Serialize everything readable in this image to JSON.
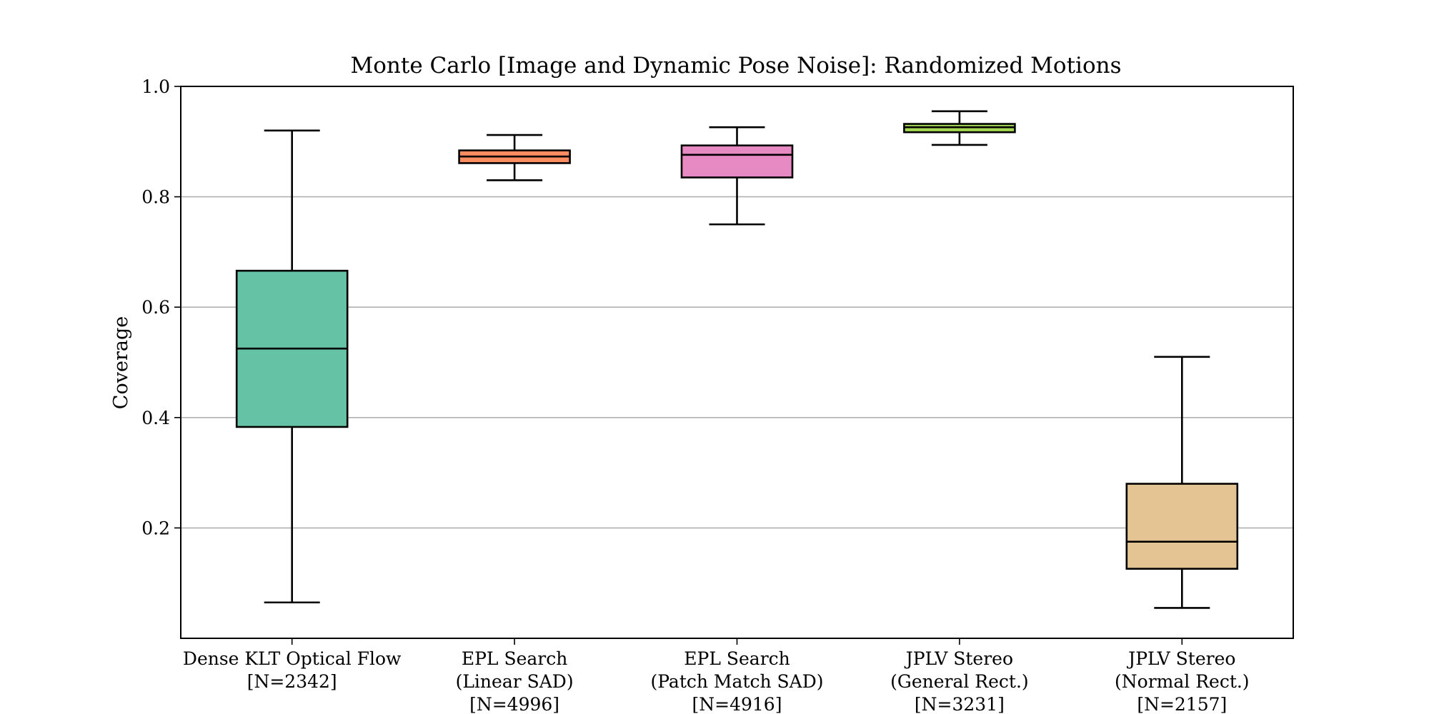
{
  "chart_data": {
    "type": "box",
    "title": "Monte Carlo [Image and Dynamic Pose Noise]: Randomized Motions",
    "xlabel": "",
    "ylabel": "Coverage",
    "ylim": [
      0.0,
      1.0
    ],
    "yticks": [
      "0.2",
      "0.4",
      "0.6",
      "0.8",
      "1.0"
    ],
    "grid": "horizontal",
    "categories": [
      {
        "lines": [
          "Dense KLT Optical Flow",
          "[N=2342]"
        ]
      },
      {
        "lines": [
          "EPL Search",
          "(Linear SAD)",
          "[N=4996]"
        ]
      },
      {
        "lines": [
          "EPL Search",
          "(Patch Match SAD)",
          "[N=4916]"
        ]
      },
      {
        "lines": [
          "JPLV Stereo",
          "(General Rect.)",
          "[N=3231]"
        ]
      },
      {
        "lines": [
          "JPLV Stereo",
          "(Normal Rect.)",
          "[N=2157]"
        ]
      }
    ],
    "boxes": [
      {
        "whislo": 0.065,
        "q1": 0.383,
        "median": 0.525,
        "q3": 0.666,
        "whishi": 0.92,
        "color": "#66c2a5"
      },
      {
        "whislo": 0.83,
        "q1": 0.861,
        "median": 0.873,
        "q3": 0.884,
        "whishi": 0.912,
        "color": "#fc8d62"
      },
      {
        "whislo": 0.75,
        "q1": 0.835,
        "median": 0.876,
        "q3": 0.893,
        "whishi": 0.926,
        "color": "#e78ac3"
      },
      {
        "whislo": 0.894,
        "q1": 0.917,
        "median": 0.926,
        "q3": 0.932,
        "whishi": 0.955,
        "color": "#a6d854"
      },
      {
        "whislo": 0.055,
        "q1": 0.126,
        "median": 0.175,
        "q3": 0.28,
        "whishi": 0.51,
        "color": "#e5c494"
      }
    ]
  }
}
